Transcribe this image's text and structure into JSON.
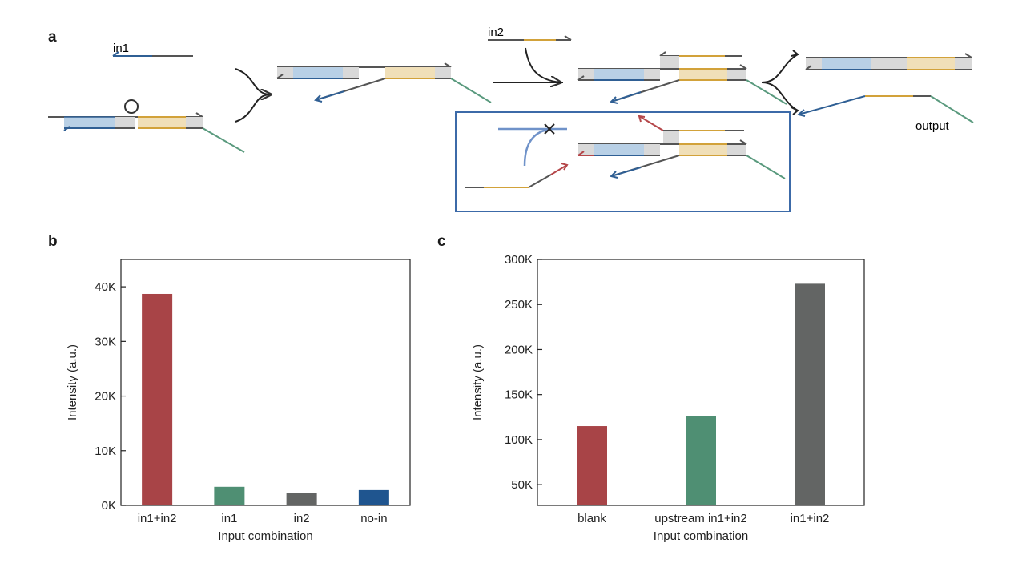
{
  "panels": {
    "a": "a",
    "b": "b",
    "c": "c"
  },
  "diagram": {
    "labels": {
      "in1": "in1",
      "in2": "in2",
      "output": "output"
    },
    "colors": {
      "strand": "#555555",
      "blue": "#2f5f94",
      "blue_fill": "#b8d0e6",
      "gold": "#d2a23a",
      "gold_fill": "#f0dfb8",
      "gray_fill": "#d9d9d9",
      "green": "#5a9a7e",
      "red": "#b5474a",
      "box": "#3c6aa8",
      "light_blue": "#6f92c9"
    }
  },
  "chart_data": [
    {
      "type": "bar",
      "categories": [
        "in1+in2",
        "in1",
        "in2",
        "no-in"
      ],
      "values": [
        38700,
        3400,
        2300,
        2800
      ],
      "colors": [
        "#a84447",
        "#4f8f73",
        "#636564",
        "#1f558f"
      ],
      "xlabel": "Input combination",
      "ylabel": "Intensity (a.u.)",
      "ylim": [
        0,
        45000
      ],
      "yticks": [
        0,
        10000,
        20000,
        30000,
        40000
      ],
      "yticklabels": [
        "0K",
        "10K",
        "20K",
        "30K",
        "40K"
      ],
      "grid": false
    },
    {
      "type": "bar",
      "categories": [
        "blank",
        "upstream in1+in2",
        "in1+in2"
      ],
      "values": [
        115000,
        126000,
        273000
      ],
      "colors": [
        "#a84447",
        "#4f8f73",
        "#636564"
      ],
      "xlabel": "Input combination",
      "ylabel": "Intensity (a.u.)",
      "ylim": [
        27000,
        300000
      ],
      "yticks": [
        50000,
        100000,
        150000,
        200000,
        250000,
        300000
      ],
      "yticklabels": [
        "50K",
        "100K",
        "150K",
        "200K",
        "250K",
        "300K"
      ],
      "grid": false
    }
  ]
}
